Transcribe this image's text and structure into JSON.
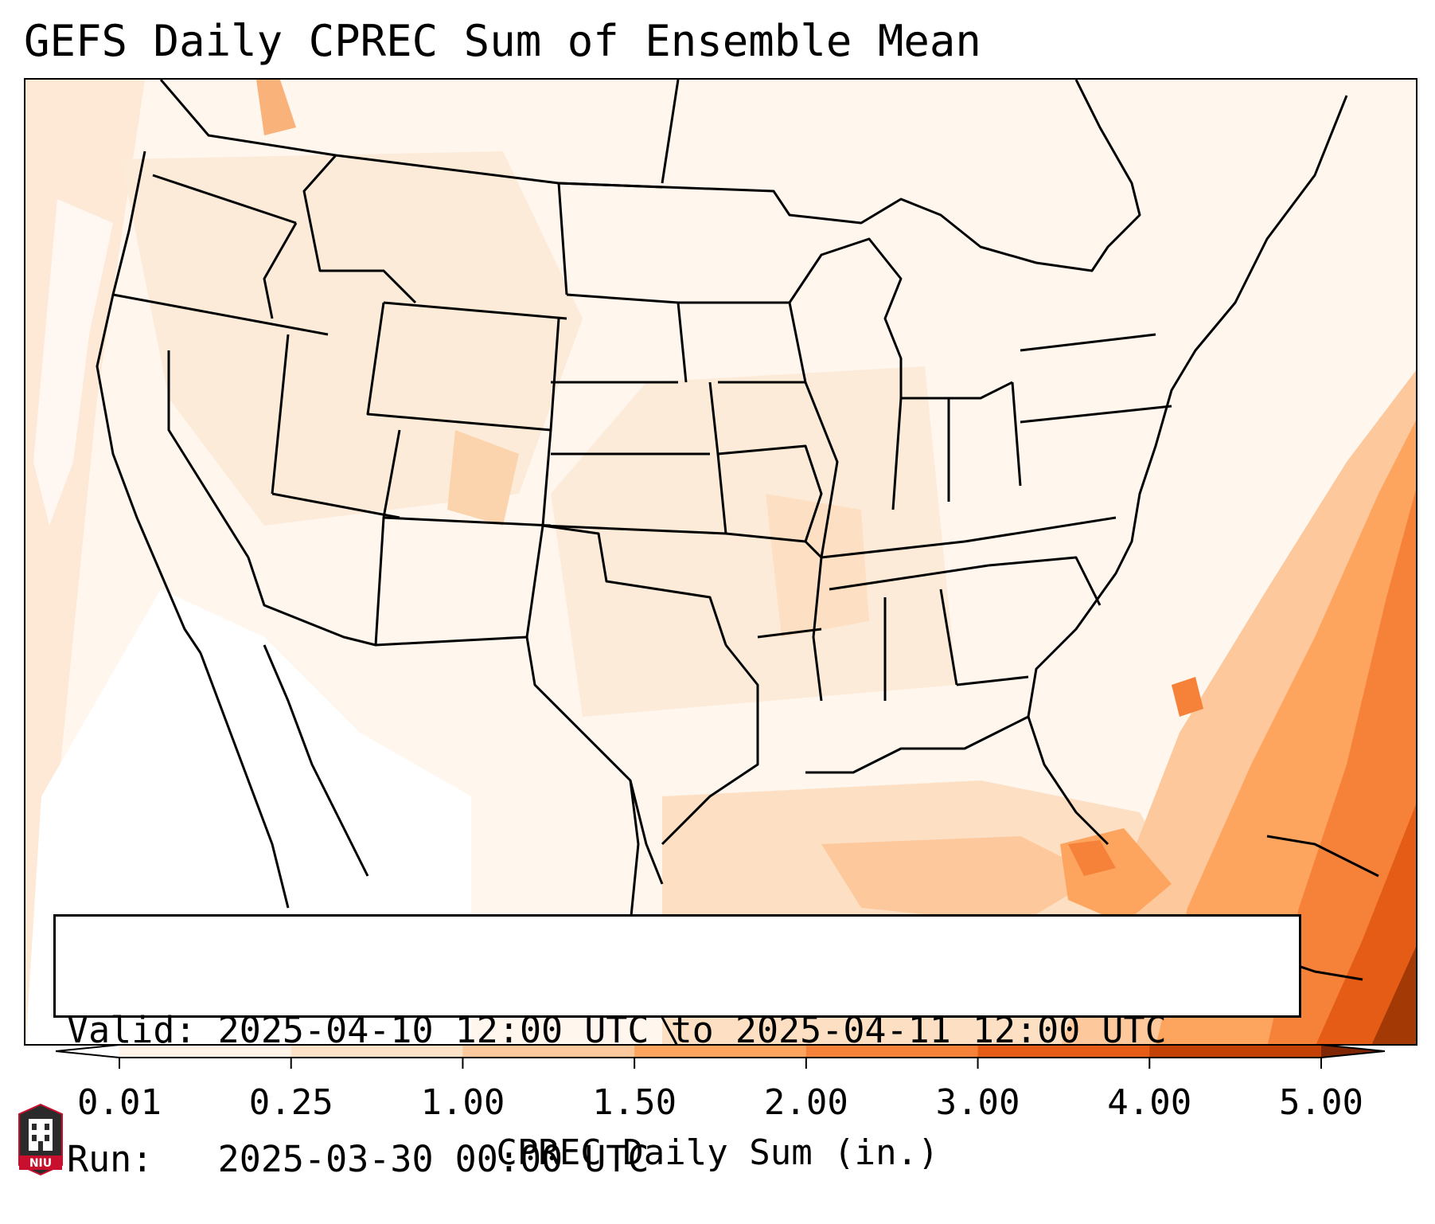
{
  "title": "GEFS Daily CPREC Sum of Ensemble Mean",
  "info": {
    "valid_line": "Valid: 2025-04-10 12:00 UTC to 2025-04-11 12:00 UTC",
    "run_line": "Run:   2025-03-30 00:00 UTC"
  },
  "colorbar": {
    "label": "CPREC Daily Sum (in.)",
    "ticks": [
      "0.01",
      "0.25",
      "1.00",
      "1.50",
      "2.00",
      "3.00",
      "4.00",
      "5.00"
    ],
    "colors": [
      "#ffffff",
      "#fff2e6",
      "#fde2c8",
      "#fcc89c",
      "#fda45e",
      "#f6823a",
      "#e45c16",
      "#c44105"
    ],
    "over_color": "#7f2704",
    "under_color": "#ffffff"
  },
  "logo": {
    "text": "NIU",
    "icon": "university-tower-icon",
    "color": "#c8102e"
  }
}
